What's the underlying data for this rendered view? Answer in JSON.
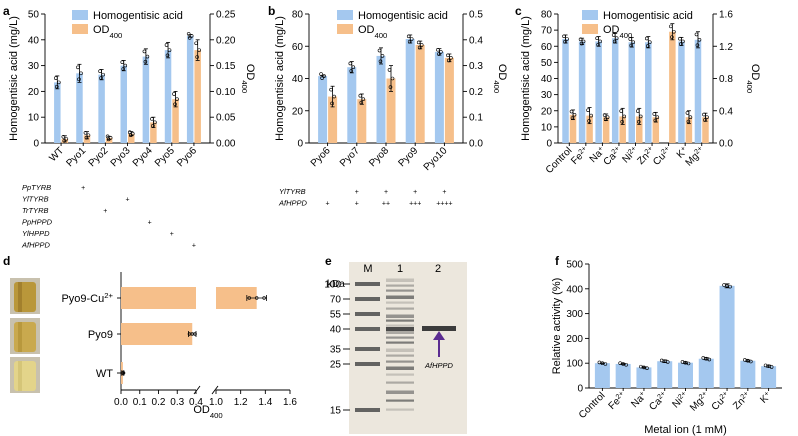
{
  "colors": {
    "blue": "#a4c8ef",
    "orange": "#f6bf8a",
    "lane": "#ece7dd"
  },
  "chart_data": [
    {
      "id": "a",
      "type": "bar",
      "panel_label": "a",
      "categories": [
        "WT",
        "Pyo1",
        "Pyo2",
        "Pyo3",
        "Pyo4",
        "Pyo5",
        "Pyo6"
      ],
      "series": [
        {
          "name": "Homogentisic acid",
          "axis": "left",
          "values": [
            23.5,
            27,
            26.5,
            30,
            33.5,
            36,
            41.5
          ],
          "errors": [
            2.5,
            3.5,
            2,
            2,
            3,
            3,
            0.5
          ]
        },
        {
          "name": "OD400",
          "axis": "right",
          "values": [
            0.008,
            0.015,
            0.01,
            0.018,
            0.04,
            0.085,
            0.18
          ],
          "errors": [
            0.006,
            0.007,
            0.003,
            0.004,
            0.01,
            0.015,
            0.02
          ]
        }
      ],
      "ylabel": "Homogentisic acid (mg/L)",
      "ylim": [
        0,
        50
      ],
      "yticks": [
        "0",
        "10",
        "20",
        "30",
        "40",
        "50"
      ],
      "y2label": "OD400",
      "y2lim": [
        0,
        0.25
      ],
      "y2ticks": [
        "0.00",
        "0.05",
        "0.10",
        "0.15",
        "0.20",
        "0.25"
      ],
      "legend": [
        "Homogentisic acid",
        "OD400"
      ],
      "genes": [
        "PpTYRB",
        "YlTYRB",
        "TrTYRB",
        "PpHPPD",
        "YlHPPD",
        "AfHPPD"
      ],
      "gene_matrix": [
        [
          "",
          "+",
          "",
          "",
          "",
          "",
          ""
        ],
        [
          "",
          "",
          "",
          "+",
          "",
          "",
          ""
        ],
        [
          "",
          "",
          "+",
          "",
          "",
          "",
          ""
        ],
        [
          "",
          "",
          "",
          "",
          "+",
          "",
          ""
        ],
        [
          "",
          "",
          "",
          "",
          "",
          "+",
          ""
        ],
        [
          "",
          "",
          "",
          "",
          "",
          "",
          "+"
        ]
      ]
    },
    {
      "id": "b",
      "type": "bar",
      "panel_label": "b",
      "categories": [
        "Pyo6",
        "Pyo7",
        "Pyo8",
        "Pyo9",
        "Pyo10"
      ],
      "series": [
        {
          "name": "Homogentisic acid",
          "axis": "left",
          "values": [
            41.5,
            47,
            54,
            64.5,
            56.5
          ],
          "errors": [
            0.5,
            3.5,
            5,
            2.5,
            2
          ]
        },
        {
          "name": "OD400",
          "axis": "right",
          "values": [
            0.18,
            0.17,
            0.25,
            0.38,
            0.33
          ],
          "errors": [
            0.04,
            0.02,
            0.05,
            0.015,
            0.015
          ]
        }
      ],
      "ylabel": "Homogentisic acid (mg/L)",
      "ylim": [
        0,
        80
      ],
      "yticks": [
        "0",
        "20",
        "40",
        "60",
        "80"
      ],
      "y2label": "OD400",
      "y2lim": [
        0,
        0.5
      ],
      "y2ticks": [
        "0.0",
        "0.1",
        "0.2",
        "0.3",
        "0.4",
        "0.5"
      ],
      "legend": [
        "Homogentisic acid",
        "OD400"
      ],
      "genes": [
        "YlTYRB",
        "AfHPPD"
      ],
      "gene_matrix": [
        [
          "",
          "+",
          "+",
          "+",
          "+"
        ],
        [
          "+",
          "+",
          "++",
          "+++",
          "++++"
        ]
      ]
    },
    {
      "id": "c",
      "type": "bar",
      "panel_label": "c",
      "categories": [
        "Control",
        "Fe2+",
        "Na+",
        "Ca2+",
        "Ni2+",
        "Zn2+",
        "Cu2+",
        "K+",
        "Mg2+"
      ],
      "series": [
        {
          "name": "Homogentisic acid",
          "axis": "left",
          "values": [
            64.5,
            63,
            63,
            65,
            62.5,
            62.5,
            0,
            63,
            64
          ],
          "errors": [
            2.5,
            2,
            3,
            3,
            3,
            3.5,
            0,
            2.5,
            5
          ]
        },
        {
          "name": "OD400",
          "axis": "right",
          "values": [
            0.35,
            0.34,
            0.32,
            0.33,
            0.33,
            0.32,
            1.38,
            0.32,
            0.32
          ],
          "errors": [
            0.06,
            0.1,
            0.04,
            0.1,
            0.1,
            0.06,
            0.1,
            0.08,
            0.05
          ]
        }
      ],
      "ylabel": "Homogentisic acid (mg/L)",
      "ylim": [
        0,
        80
      ],
      "yticks": [
        "0",
        "10",
        "20",
        "30",
        "40",
        "50",
        "60",
        "70",
        "80"
      ],
      "y2label": "OD400",
      "y2lim": [
        0,
        1.6
      ],
      "y2ticks": [
        "0.0",
        "0.4",
        "0.8",
        "1.2",
        "1.6"
      ],
      "legend": [
        "Homogentisic acid",
        "OD400"
      ]
    },
    {
      "id": "d",
      "type": "bar",
      "orientation": "horizontal",
      "panel_label": "d",
      "categories": [
        "Pyo9-Cu2+",
        "Pyo9",
        "WT"
      ],
      "values": [
        1.33,
        0.38,
        0.01
      ],
      "errors": [
        0.08,
        0.02,
        0.005
      ],
      "xlabel": "OD400",
      "xticks": [
        "0.0",
        "0.1",
        "0.2",
        "0.3",
        "0.4",
        "1.0",
        "1.2",
        "1.4",
        "1.6"
      ],
      "axis_break": [
        0.4,
        1.0
      ]
    },
    {
      "id": "e",
      "type": "gel",
      "panel_label": "e",
      "unit": "kDa",
      "markers": [
        "100",
        "70",
        "55",
        "40",
        "35",
        "25",
        "15"
      ],
      "lanes": [
        "M",
        "1",
        "2"
      ],
      "annotation": "AfHPPD"
    },
    {
      "id": "f",
      "type": "bar",
      "panel_label": "f",
      "categories": [
        "Control",
        "Fe2+",
        "Na+",
        "Ca2+",
        "Ni2+",
        "Mg2+",
        "Cu2+",
        "Zn2+",
        "K+"
      ],
      "values": [
        100,
        97,
        83,
        108,
        102,
        118,
        412,
        110,
        88
      ],
      "errors": [
        1,
        2,
        2,
        5,
        3,
        4,
        8,
        3,
        4
      ],
      "ylabel": "Relative activity (%)",
      "ylim": [
        0,
        500
      ],
      "yticks": [
        "0",
        "100",
        "200",
        "300",
        "400",
        "500"
      ],
      "xlabel": "Metal ion (1 mM)"
    }
  ]
}
